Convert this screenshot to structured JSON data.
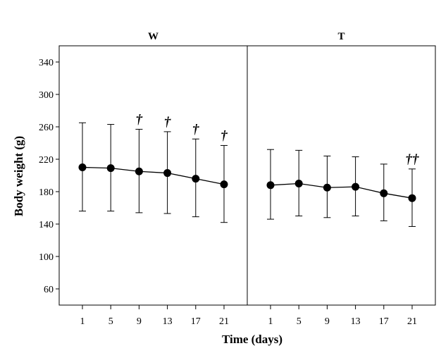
{
  "chart_data": {
    "type": "line",
    "xlabel": "Time (days)",
    "ylabel": "Body weight (g)",
    "ylim": [
      40,
      360
    ],
    "yticks": [
      60,
      100,
      140,
      180,
      220,
      260,
      300,
      340
    ],
    "categories": [
      "1",
      "5",
      "9",
      "13",
      "17",
      "21"
    ],
    "error_bars": "mean ± SD",
    "panels": [
      {
        "title": "W",
        "mean": [
          210,
          209,
          205,
          203,
          196,
          189
        ],
        "upper": [
          265,
          263,
          257,
          254,
          245,
          237
        ],
        "lower": [
          156,
          156,
          154,
          153,
          149,
          142
        ],
        "significance": [
          "",
          "",
          "†",
          "†",
          "†",
          "†"
        ]
      },
      {
        "title": "T",
        "mean": [
          188,
          190,
          185,
          186,
          178,
          172
        ],
        "upper": [
          232,
          231,
          224,
          223,
          214,
          208
        ],
        "lower": [
          146,
          150,
          148,
          150,
          144,
          137
        ],
        "significance": [
          "",
          "",
          "",
          "",
          "",
          "††"
        ]
      }
    ]
  }
}
